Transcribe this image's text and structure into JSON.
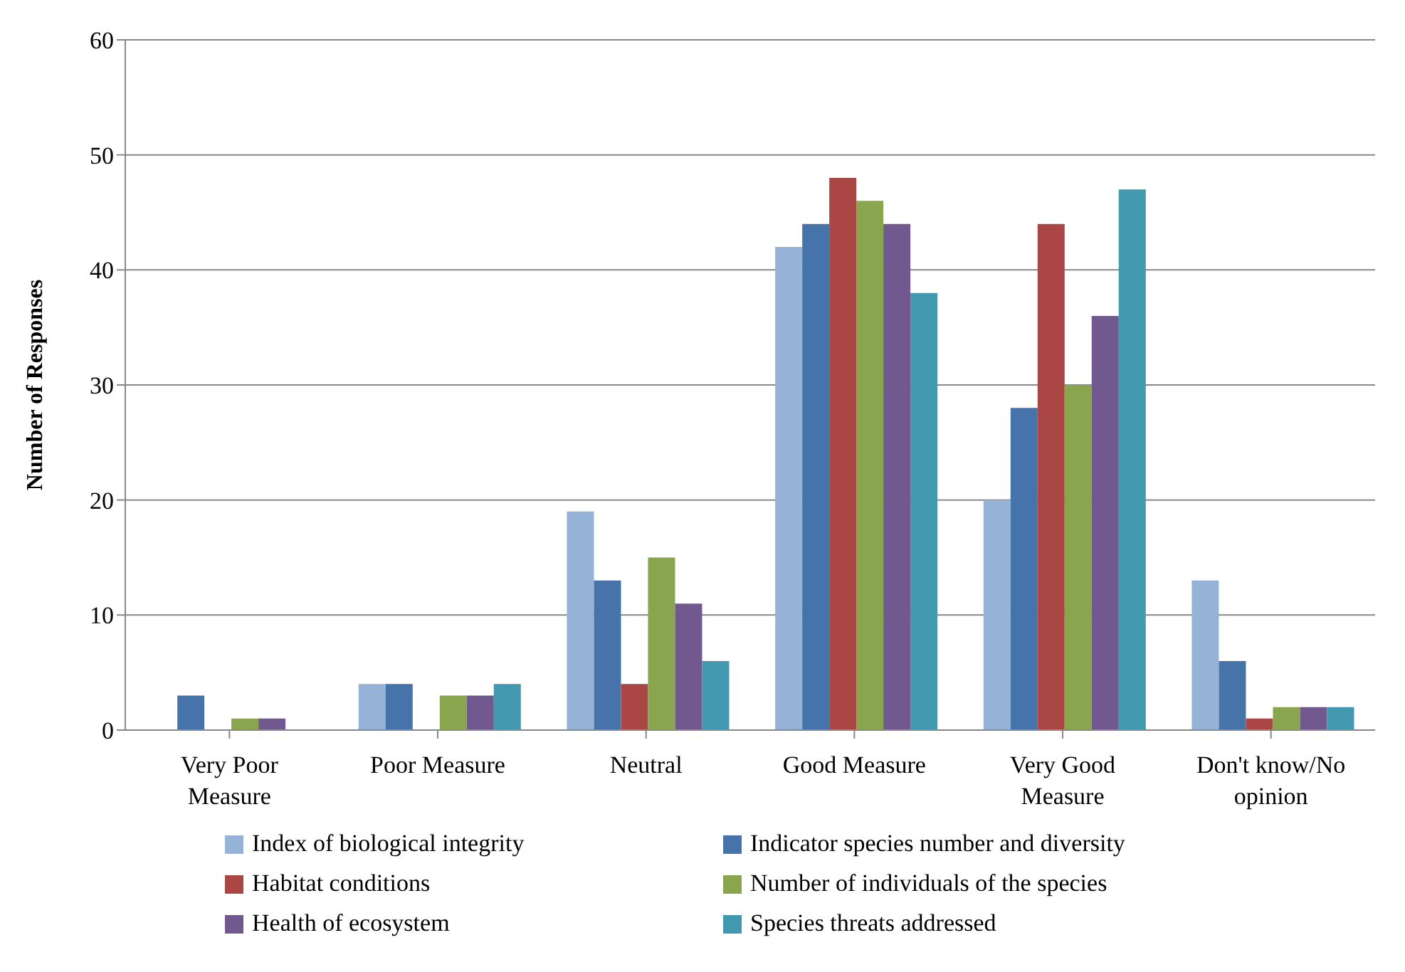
{
  "chart_data": {
    "type": "bar",
    "ylabel": "Number of Responses",
    "categories": [
      "Very Poor Measure",
      "Poor Measure",
      "Neutral",
      "Good Measure",
      "Very Good Measure",
      "Don't know/No opinion"
    ],
    "series": [
      {
        "name": "Index of biological integrity",
        "color": "#95b3d7",
        "values": [
          0,
          4,
          19,
          42,
          20,
          13
        ]
      },
      {
        "name": "Indicator species number and diversity",
        "color": "#4674aa",
        "values": [
          3,
          4,
          13,
          44,
          28,
          6
        ]
      },
      {
        "name": "Habitat conditions",
        "color": "#aa4643",
        "values": [
          0,
          0,
          4,
          48,
          44,
          1
        ]
      },
      {
        "name": "Number of individuals of the species",
        "color": "#89a54e",
        "values": [
          1,
          3,
          15,
          46,
          30,
          2
        ]
      },
      {
        "name": "Health of ecosystem",
        "color": "#71588f",
        "values": [
          1,
          3,
          11,
          44,
          36,
          2
        ]
      },
      {
        "name": "Species threats addressed",
        "color": "#4198af",
        "values": [
          0,
          4,
          6,
          38,
          47,
          2
        ]
      }
    ],
    "ylim": [
      0,
      60
    ],
    "yticks": [
      0,
      10,
      20,
      30,
      40,
      50,
      60
    ],
    "grid": "y",
    "legend": "bottom"
  }
}
